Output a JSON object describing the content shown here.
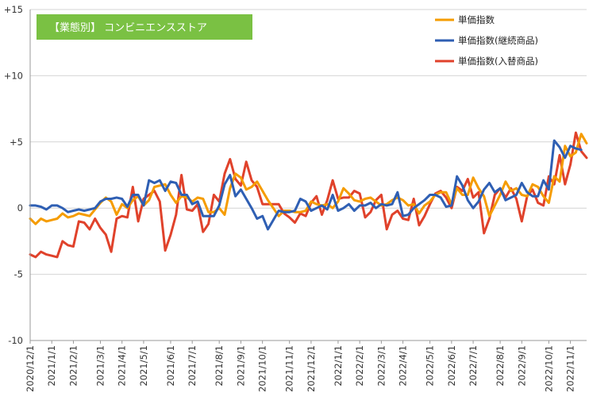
{
  "chart_data": {
    "type": "line",
    "title": "【業態別】 コンビニエンスストア",
    "xlabel": "",
    "ylabel": "",
    "ylim": [
      -10,
      15
    ],
    "y_ticks": [
      "+15",
      "+10",
      "+5",
      "0",
      "-5",
      "-10"
    ],
    "y_tick_values": [
      15,
      10,
      5,
      0,
      -5,
      -10
    ],
    "grid": "horizontal",
    "legend_position": "top-right",
    "x_ticks": [
      "2020/12/1",
      "2021/1/1",
      "2021/2/1",
      "2021/3/1",
      "2021/4/1",
      "2021/5/1",
      "2021/6/1",
      "2021/7/1",
      "2021/8/1",
      "2021/9/1",
      "2021/10/1",
      "2021/11/1",
      "2021/12/1",
      "2022/1/1",
      "2022/2/1",
      "2022/3/1",
      "2022/4/1",
      "2022/5/1",
      "2022/6/1",
      "2022/7/1",
      "2022/8/1",
      "2022/9/1",
      "2022/10/1",
      "2022/11/1"
    ],
    "x_tick_index": [
      0,
      4,
      8,
      13,
      17,
      21,
      26,
      30,
      35,
      39,
      43,
      48,
      52,
      57,
      61,
      65,
      69,
      74,
      78,
      82,
      87,
      91,
      96,
      100
    ],
    "series": [
      {
        "name": "単価指数",
        "color": "#f59c00",
        "values": [
          -0.8,
          -1.2,
          -0.8,
          -1.0,
          -0.9,
          -0.8,
          -0.4,
          -0.7,
          -0.6,
          -0.4,
          -0.5,
          -0.6,
          -0.1,
          0.4,
          0.8,
          0.5,
          -0.5,
          0.3,
          0.0,
          0.6,
          0.9,
          0.2,
          0.6,
          1.6,
          1.7,
          1.8,
          1.0,
          0.4,
          0.9,
          0.8,
          0.5,
          0.8,
          0.7,
          -0.3,
          -0.3,
          0.0,
          -0.5,
          1.5,
          2.6,
          2.3,
          1.4,
          1.6,
          2.0,
          1.3,
          0.6,
          0.0,
          -0.6,
          -0.2,
          -0.2,
          -0.3,
          -0.3,
          -0.2,
          0.5,
          0.3,
          0.2,
          0.3,
          0.0,
          0.5,
          1.5,
          1.1,
          0.6,
          0.5,
          0.7,
          0.8,
          0.5,
          0.2,
          0.3,
          0.6,
          0.8,
          0.6,
          0.2,
          0.3,
          -0.4,
          0.2,
          0.5,
          1.0,
          1.2,
          1.2,
          0.3,
          1.5,
          1.0,
          1.0,
          2.3,
          1.5,
          0.9,
          -0.6,
          0.2,
          1.0,
          2.0,
          1.3,
          1.5,
          1.0,
          0.9,
          1.8,
          1.6,
          0.9,
          0.4,
          2.4,
          2.0,
          4.7,
          3.9,
          4.2,
          5.6,
          4.9
        ]
      },
      {
        "name": "単価指数(継続商品)",
        "color": "#2f5fb3",
        "values": [
          0.2,
          0.2,
          0.1,
          -0.1,
          0.2,
          0.2,
          0.0,
          -0.3,
          -0.2,
          -0.1,
          -0.2,
          -0.1,
          0.0,
          0.5,
          0.7,
          0.7,
          0.8,
          0.7,
          0.1,
          1.0,
          1.0,
          0.2,
          2.1,
          1.9,
          2.1,
          1.3,
          2.0,
          1.9,
          1.0,
          1.0,
          0.3,
          0.5,
          -0.6,
          -0.6,
          -0.6,
          0.2,
          1.8,
          2.5,
          0.9,
          1.4,
          0.7,
          0.0,
          -0.8,
          -0.6,
          -1.6,
          -0.9,
          -0.2,
          -0.3,
          -0.3,
          -0.2,
          0.7,
          0.5,
          -0.2,
          0.0,
          0.2,
          -0.1,
          1.0,
          -0.2,
          0.0,
          0.3,
          -0.2,
          0.2,
          0.2,
          0.4,
          0.0,
          0.3,
          0.2,
          0.3,
          1.2,
          -0.6,
          -0.5,
          0.0,
          0.3,
          0.6,
          1.0,
          1.0,
          0.8,
          0.1,
          0.2,
          2.4,
          1.7,
          0.6,
          0.0,
          0.5,
          1.4,
          1.9,
          1.2,
          1.5,
          0.6,
          0.8,
          1.0,
          1.9,
          1.2,
          0.9,
          0.9,
          2.1,
          1.4,
          5.1,
          4.6,
          3.8,
          4.7,
          4.5,
          4.4
        ]
      },
      {
        "name": "単価指数(入替商品)",
        "color": "#e0422b",
        "values": [
          -3.5,
          -3.7,
          -3.3,
          -3.5,
          -3.6,
          -3.7,
          -2.5,
          -2.8,
          -2.9,
          -1.0,
          -1.1,
          -1.6,
          -0.8,
          -1.5,
          -2.0,
          -3.3,
          -0.8,
          -0.6,
          -0.7,
          1.6,
          -1.0,
          0.7,
          1.0,
          1.3,
          0.5,
          -3.2,
          -2.0,
          -0.5,
          2.5,
          -0.1,
          -0.2,
          0.3,
          -1.8,
          -1.2,
          1.0,
          0.5,
          2.6,
          3.7,
          2.2,
          1.7,
          3.5,
          2.1,
          1.6,
          0.3,
          0.3,
          0.3,
          0.3,
          -0.4,
          -0.7,
          -1.1,
          -0.4,
          -0.6,
          0.4,
          0.9,
          -0.5,
          0.6,
          2.1,
          0.7,
          0.8,
          0.8,
          1.3,
          1.1,
          -0.7,
          -0.3,
          0.6,
          1.0,
          -1.6,
          -0.5,
          -0.2,
          -0.8,
          -0.9,
          0.7,
          -1.3,
          -0.6,
          0.3,
          1.1,
          1.3,
          0.8,
          0.0,
          1.6,
          1.3,
          2.2,
          0.8,
          1.2,
          -1.9,
          -0.8,
          1.0,
          1.5,
          0.8,
          1.5,
          0.7,
          -1.0,
          0.9,
          1.4,
          0.4,
          0.2,
          2.4,
          1.8,
          4.0,
          1.8,
          3.3,
          5.7,
          4.3,
          3.8
        ]
      }
    ]
  }
}
